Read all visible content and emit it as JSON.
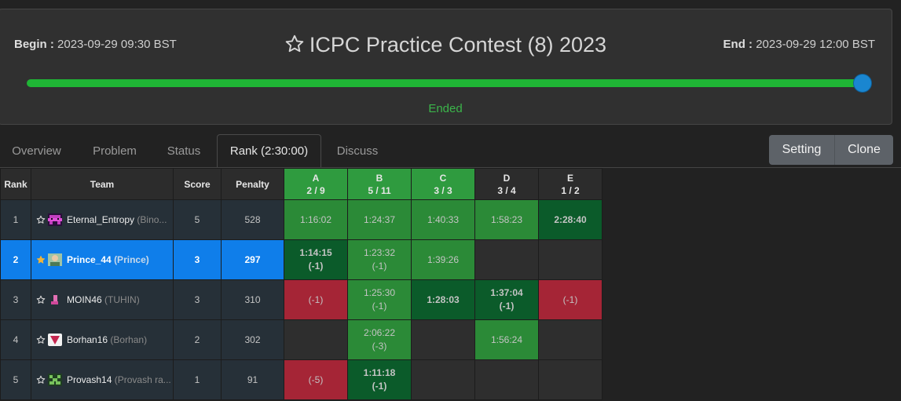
{
  "contest": {
    "begin_label": "Begin :",
    "begin_time": "2023-09-29 09:30 BST",
    "end_label": "End :",
    "end_time": "2023-09-29 12:00 BST",
    "title": "ICPC Practice Contest (8) 2023",
    "status": "Ended",
    "progress": 1.0
  },
  "colors": {
    "progress": "#1fb535",
    "accent": "#1a86d0",
    "accepted": "#2b8a37",
    "first_solve": "#0b5b2a",
    "rejected": "#a52536",
    "highlight_row": "#0f7eea"
  },
  "tabs": [
    "Overview",
    "Problem",
    "Status",
    "Rank (2:30:00)",
    "Discuss"
  ],
  "active_tab": 3,
  "actions": {
    "setting": "Setting",
    "clone": "Clone"
  },
  "table": {
    "headers": {
      "rank": "Rank",
      "team": "Team",
      "score": "Score",
      "penalty": "Penalty"
    },
    "problems": [
      {
        "letter": "A",
        "stat": "2 / 9"
      },
      {
        "letter": "B",
        "stat": "5 / 11"
      },
      {
        "letter": "C",
        "stat": "3 / 3"
      },
      {
        "letter": "D",
        "stat": "3 / 4"
      },
      {
        "letter": "E",
        "stat": "1 / 2"
      }
    ],
    "rows": [
      {
        "rank": "1",
        "name": "Eternal_Entropy",
        "sub": "(Bino...",
        "score": "5",
        "penalty": "528",
        "starred": false,
        "highlight": false,
        "avatar": "pixel-avatar-purple",
        "cells": [
          {
            "status": "ac",
            "time": "1:16:02",
            "tries": ""
          },
          {
            "status": "ac",
            "time": "1:24:37",
            "tries": ""
          },
          {
            "status": "ac",
            "time": "1:40:33",
            "tries": ""
          },
          {
            "status": "ac",
            "time": "1:58:23",
            "tries": ""
          },
          {
            "status": "first",
            "time": "2:28:40",
            "tries": ""
          }
        ]
      },
      {
        "rank": "2",
        "name": "Prince_44",
        "sub": "(Prince)",
        "score": "3",
        "penalty": "297",
        "starred": true,
        "highlight": true,
        "avatar": "photo-avatar",
        "cells": [
          {
            "status": "first",
            "time": "1:14:15",
            "tries": "(-1)"
          },
          {
            "status": "ac",
            "time": "1:23:32",
            "tries": "(-1)"
          },
          {
            "status": "ac",
            "time": "1:39:26",
            "tries": ""
          },
          {
            "status": "none",
            "time": "",
            "tries": ""
          },
          {
            "status": "none",
            "time": "",
            "tries": ""
          }
        ]
      },
      {
        "rank": "3",
        "name": "MOIN46",
        "sub": "(TUHIN)",
        "score": "3",
        "penalty": "310",
        "starred": false,
        "highlight": false,
        "avatar": "boot-avatar",
        "cells": [
          {
            "status": "wa",
            "time": "",
            "tries": "(-1)"
          },
          {
            "status": "ac",
            "time": "1:25:30",
            "tries": "(-1)"
          },
          {
            "status": "first",
            "time": "1:28:03",
            "tries": ""
          },
          {
            "status": "first",
            "time": "1:37:04",
            "tries": "(-1)"
          },
          {
            "status": "wa",
            "time": "",
            "tries": "(-1)"
          }
        ]
      },
      {
        "rank": "4",
        "name": "Borhan16",
        "sub": "(Borhan)",
        "score": "2",
        "penalty": "302",
        "starred": false,
        "highlight": false,
        "avatar": "shield-avatar",
        "cells": [
          {
            "status": "none",
            "time": "",
            "tries": ""
          },
          {
            "status": "ac",
            "time": "2:06:22",
            "tries": "(-3)"
          },
          {
            "status": "none",
            "time": "",
            "tries": ""
          },
          {
            "status": "ac",
            "time": "1:56:24",
            "tries": ""
          },
          {
            "status": "none",
            "time": "",
            "tries": ""
          }
        ]
      },
      {
        "rank": "5",
        "name": "Provash14",
        "sub": "(Provash ra...",
        "score": "1",
        "penalty": "91",
        "starred": false,
        "highlight": false,
        "avatar": "pixel-avatar-green",
        "cells": [
          {
            "status": "wa",
            "time": "",
            "tries": "(-5)"
          },
          {
            "status": "first",
            "time": "1:11:18",
            "tries": "(-1)"
          },
          {
            "status": "none",
            "time": "",
            "tries": ""
          },
          {
            "status": "none",
            "time": "",
            "tries": ""
          },
          {
            "status": "none",
            "time": "",
            "tries": ""
          }
        ]
      }
    ]
  }
}
